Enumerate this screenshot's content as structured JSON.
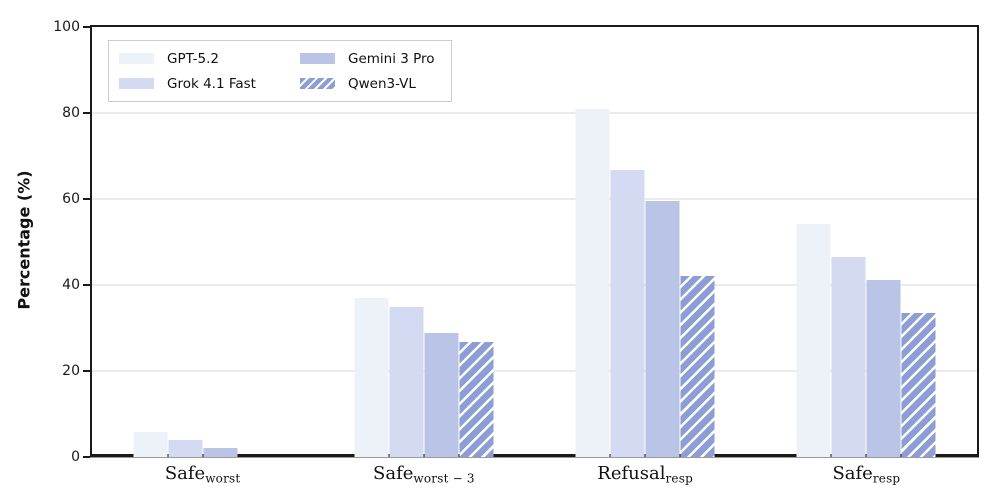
{
  "chart_data": {
    "type": "bar",
    "title": "",
    "xlabel": "",
    "ylabel": "Percentage (%)",
    "ylim": [
      0,
      100
    ],
    "yticks": [
      0,
      20,
      40,
      60,
      80,
      100
    ],
    "grid": "horizontal",
    "legend_position": "upper-left",
    "legend_columns": 2,
    "categories": [
      {
        "base": "Safe",
        "sub": "worst"
      },
      {
        "base": "Safe",
        "sub": "worst − 3"
      },
      {
        "base": "Refusal",
        "sub": "resp"
      },
      {
        "base": "Safe",
        "sub": "resp"
      }
    ],
    "series": [
      {
        "name": "GPT-5.2",
        "color": "#edf1f8",
        "hatch": false,
        "values": [
          5.8,
          36.9,
          80.9,
          54.3
        ]
      },
      {
        "name": "Grok 4.1 Fast",
        "color": "#d4daf1",
        "hatch": false,
        "values": [
          4.0,
          34.9,
          66.8,
          46.4
        ]
      },
      {
        "name": "Gemini 3 Pro",
        "color": "#b9c4e6",
        "hatch": false,
        "values": [
          2.0,
          28.9,
          59.6,
          41.2
        ]
      },
      {
        "name": "Qwen3-VL",
        "color": "#8d9ed6",
        "hatch": true,
        "hatch_color": "#ffffff",
        "values": [
          0.0,
          26.7,
          42.1,
          33.5
        ]
      }
    ],
    "colors": {
      "axis": "#1a1a1a",
      "gridline": "#ebebee",
      "background": "#ffffff"
    }
  }
}
